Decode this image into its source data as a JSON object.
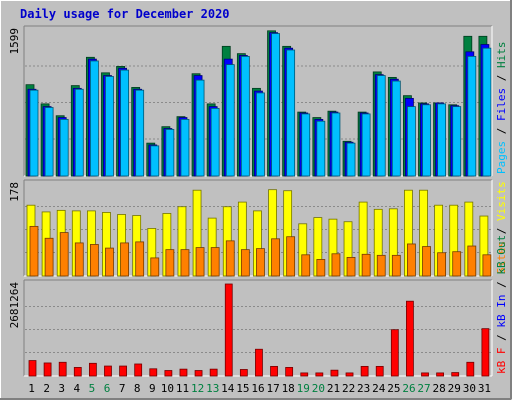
{
  "title": "Daily usage for December 2020",
  "colors": {
    "background": "#c0c0c0",
    "frame": "#ffffff",
    "title": "#0000cc",
    "hits": "#008040",
    "files": "#0000ff",
    "pages": "#00c0ff",
    "visits": "#ffff00",
    "sites": "#ff8000",
    "kbin": "#0000ff",
    "kbout": "#008040",
    "kbf": "#ff0000",
    "weekend_day": "#008040",
    "weekday": "#000000"
  },
  "chart_data": [
    {
      "type": "bar",
      "panel": "top",
      "ymax_label": "1599",
      "ylim": [
        0,
        1599
      ],
      "categories": [
        "1",
        "2",
        "3",
        "4",
        "5",
        "6",
        "7",
        "8",
        "9",
        "10",
        "11",
        "12",
        "13",
        "14",
        "15",
        "16",
        "17",
        "18",
        "19",
        "20",
        "21",
        "22",
        "23",
        "24",
        "25",
        "26",
        "27",
        "28",
        "29",
        "30",
        "31"
      ],
      "legend": [
        {
          "key": "pages",
          "text": "Pages"
        },
        {
          "key": "sep",
          "text": " / "
        },
        {
          "key": "files",
          "text": "Files"
        },
        {
          "key": "sep",
          "text": " / "
        },
        {
          "key": "hits",
          "text": "Hits"
        }
      ],
      "series": [
        {
          "name": "Hits",
          "color_key": "hits",
          "values": [
            1000,
            790,
            660,
            990,
            1300,
            1130,
            1200,
            970,
            360,
            540,
            650,
            1120,
            790,
            1420,
            1340,
            960,
            1590,
            1420,
            700,
            640,
            710,
            380,
            700,
            1140,
            1080,
            880,
            800,
            800,
            780,
            1530,
            1530
          ]
        },
        {
          "name": "Files",
          "color_key": "files",
          "values": [
            950,
            760,
            640,
            960,
            1280,
            1100,
            1180,
            950,
            340,
            520,
            640,
            1100,
            760,
            1280,
            1320,
            930,
            1570,
            1400,
            690,
            620,
            700,
            370,
            690,
            1110,
            1060,
            850,
            790,
            800,
            770,
            1360,
            1440
          ]
        },
        {
          "name": "Pages",
          "color_key": "pages",
          "values": [
            940,
            750,
            620,
            950,
            1260,
            1090,
            1160,
            940,
            330,
            510,
            620,
            1050,
            740,
            1220,
            1310,
            910,
            1560,
            1380,
            680,
            600,
            690,
            360,
            680,
            1100,
            1040,
            760,
            780,
            790,
            760,
            1310,
            1400
          ]
        }
      ]
    },
    {
      "type": "bar",
      "panel": "middle",
      "ymax_label": "178",
      "ylim": [
        0,
        178
      ],
      "categories": [
        "1",
        "2",
        "3",
        "4",
        "5",
        "6",
        "7",
        "8",
        "9",
        "10",
        "11",
        "12",
        "13",
        "14",
        "15",
        "16",
        "17",
        "18",
        "19",
        "20",
        "21",
        "22",
        "23",
        "24",
        "25",
        "26",
        "27",
        "28",
        "29",
        "30",
        "31"
      ],
      "legend": [
        {
          "key": "sites",
          "text": "Sites"
        },
        {
          "key": "sep",
          "text": " / "
        },
        {
          "key": "visits",
          "text": "Visits"
        }
      ],
      "series": [
        {
          "name": "Visits",
          "color_key": "visits",
          "values": [
            137,
            124,
            127,
            126,
            126,
            123,
            119,
            117,
            92,
            121,
            134,
            166,
            112,
            134,
            143,
            126,
            167,
            165,
            101,
            113,
            110,
            105,
            143,
            129,
            130,
            166,
            166,
            137,
            137,
            143,
            116
          ]
        },
        {
          "name": "Sites",
          "color_key": "sites",
          "values": [
            96,
            73,
            84,
            64,
            61,
            54,
            64,
            66,
            35,
            51,
            51,
            55,
            55,
            68,
            51,
            53,
            72,
            76,
            41,
            32,
            43,
            36,
            42,
            40,
            40,
            62,
            57,
            45,
            47,
            58,
            41
          ]
        }
      ]
    },
    {
      "type": "bar",
      "panel": "bottom",
      "ymax_label": "2681264",
      "ylim": [
        0,
        2681264
      ],
      "categories": [
        "1",
        "2",
        "3",
        "4",
        "5",
        "6",
        "7",
        "8",
        "9",
        "10",
        "11",
        "12",
        "13",
        "14",
        "15",
        "16",
        "17",
        "18",
        "19",
        "20",
        "21",
        "22",
        "23",
        "24",
        "25",
        "26",
        "27",
        "28",
        "29",
        "30",
        "31"
      ],
      "legend": [
        {
          "key": "kbf",
          "text": "kB F"
        },
        {
          "key": "sep",
          "text": " / "
        },
        {
          "key": "kbin",
          "text": "kB In"
        },
        {
          "key": "sep",
          "text": " / "
        },
        {
          "key": "kbout",
          "text": "kB Out"
        }
      ],
      "series": [
        {
          "name": "kB F",
          "color_key": "kbf",
          "values": [
            450000,
            380000,
            400000,
            250000,
            370000,
            290000,
            290000,
            350000,
            210000,
            160000,
            200000,
            160000,
            200000,
            2681264,
            190000,
            780000,
            280000,
            250000,
            90000,
            90000,
            170000,
            90000,
            280000,
            280000,
            1350000,
            2180000,
            90000,
            90000,
            100000,
            400000,
            1380000
          ]
        }
      ]
    }
  ],
  "weekend_days": [
    5,
    6,
    12,
    13,
    19,
    20,
    26,
    27
  ]
}
